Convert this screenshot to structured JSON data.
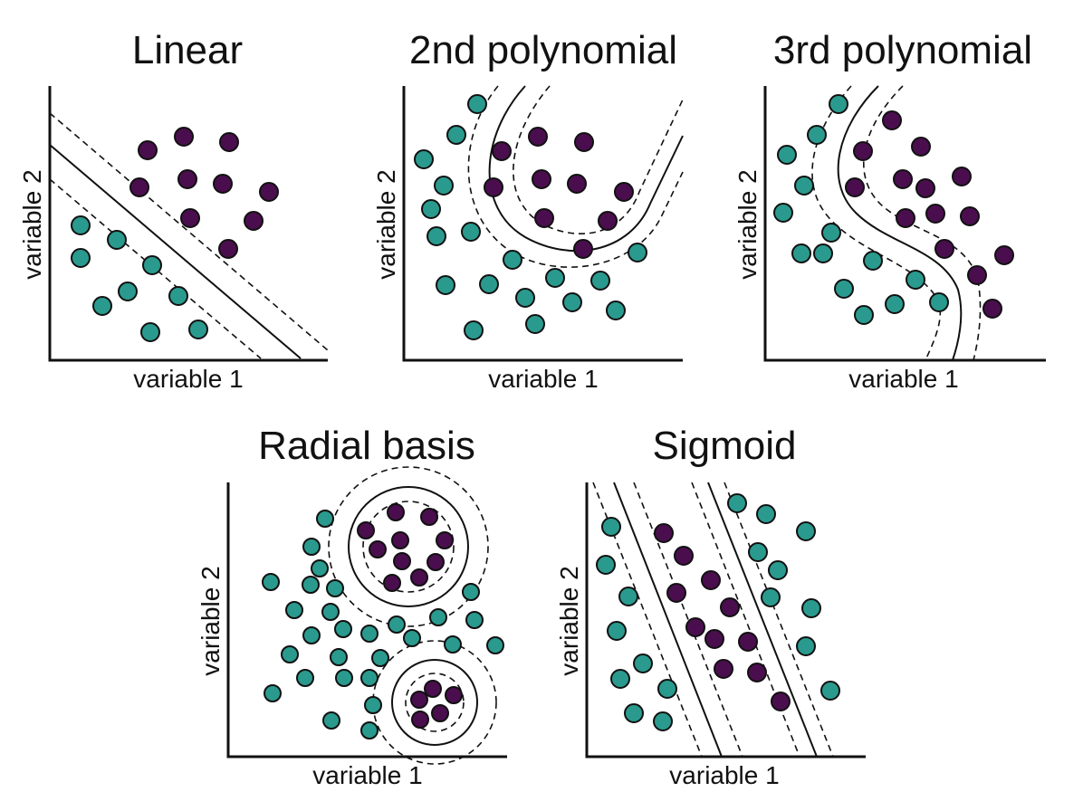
{
  "colors": {
    "class_a": "#2a9a8e",
    "class_b": "#4a0e4e"
  },
  "panels": [
    {
      "id": "linear",
      "title": "Linear",
      "xlabel": "variable 1",
      "ylabel": "variable 2"
    },
    {
      "id": "poly2",
      "title": "2nd polynomial",
      "xlabel": "variable 1",
      "ylabel": "variable 2"
    },
    {
      "id": "poly3",
      "title": "3rd polynomial",
      "xlabel": "variable 1",
      "ylabel": "variable 2"
    },
    {
      "id": "rbf",
      "title": "Radial basis",
      "xlabel": "variable 1",
      "ylabel": "variable 2"
    },
    {
      "id": "sigmoid",
      "title": "Sigmoid",
      "xlabel": "variable 1",
      "ylabel": "variable 2"
    }
  ]
}
